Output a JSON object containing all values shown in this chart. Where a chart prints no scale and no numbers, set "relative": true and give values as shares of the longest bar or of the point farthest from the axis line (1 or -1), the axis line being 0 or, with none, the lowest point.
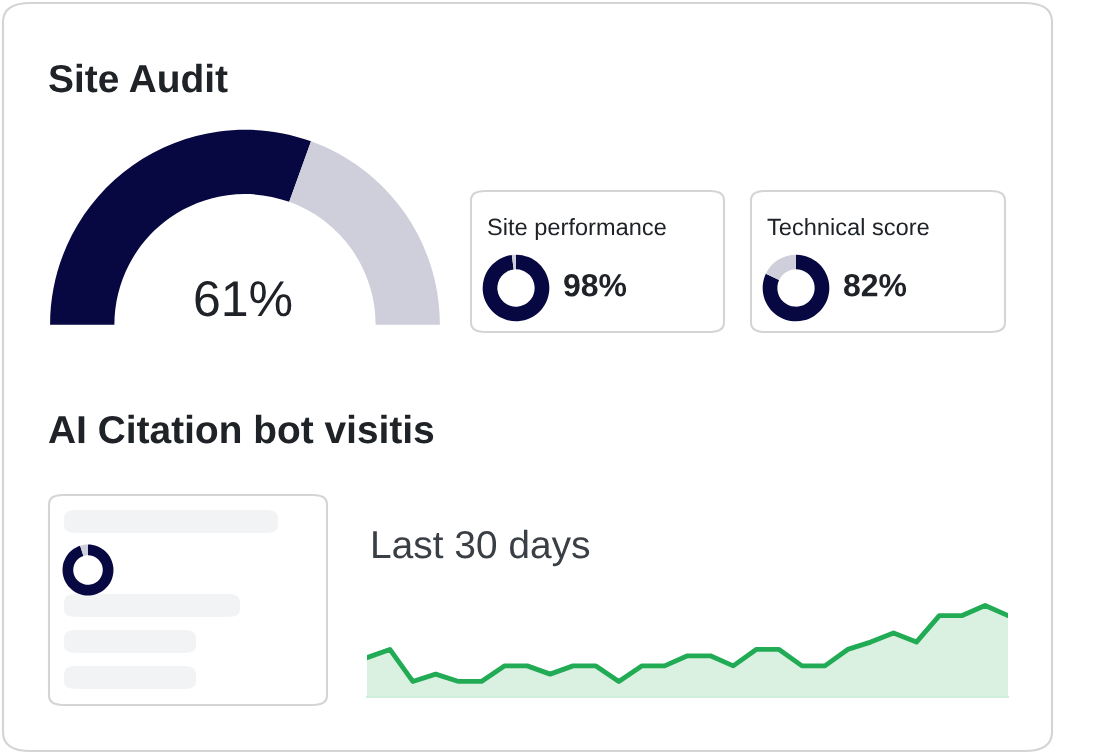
{
  "chart_data": [
    {
      "type": "donut",
      "title": "Site Audit",
      "categories": [
        null,
        null
      ],
      "values": [
        61,
        39
      ],
      "colors": [
        "#070841",
        "#cfcfdc"
      ],
      "annotations": [
        "61%"
      ]
    },
    {
      "type": "donut",
      "title": "Site performance",
      "categories": [
        null,
        null
      ],
      "values": [
        98,
        2
      ],
      "colors": [
        "#070841",
        "#cfcfdc"
      ],
      "annotations": [
        "98%"
      ]
    },
    {
      "type": "donut",
      "title": "Technical score",
      "categories": [
        null,
        null
      ],
      "values": [
        82,
        18
      ],
      "colors": [
        "#070841",
        "#cfcfdc"
      ],
      "annotations": [
        "82%"
      ]
    },
    {
      "type": "donut",
      "title": "AI Citation bot visitis",
      "categories": [
        null,
        null
      ],
      "values": [
        95,
        5
      ],
      "colors": [
        "#070841",
        "#cfcfdc"
      ]
    },
    {
      "type": "area",
      "subtitle": "Last 30 days",
      "relative": true,
      "categories": [
        null,
        null,
        null,
        null,
        null,
        null,
        null,
        null,
        null,
        null,
        null,
        null,
        null,
        null,
        null,
        null,
        null,
        null,
        null,
        null,
        null,
        null,
        null,
        null,
        null,
        null,
        null,
        null,
        null
      ],
      "series": [
        {
          "color": "#22ab55",
          "values": [
            0.43,
            0.52,
            0.17,
            0.25,
            0.17,
            0.17,
            0.34,
            0.34,
            0.25,
            0.34,
            0.34,
            0.17,
            0.34,
            0.34,
            0.45,
            0.45,
            0.34,
            0.52,
            0.52,
            0.34,
            0.34,
            0.52,
            0.6,
            0.7,
            0.6,
            0.89,
            0.89,
            1,
            0.89
          ]
        }
      ]
    }
  ]
}
